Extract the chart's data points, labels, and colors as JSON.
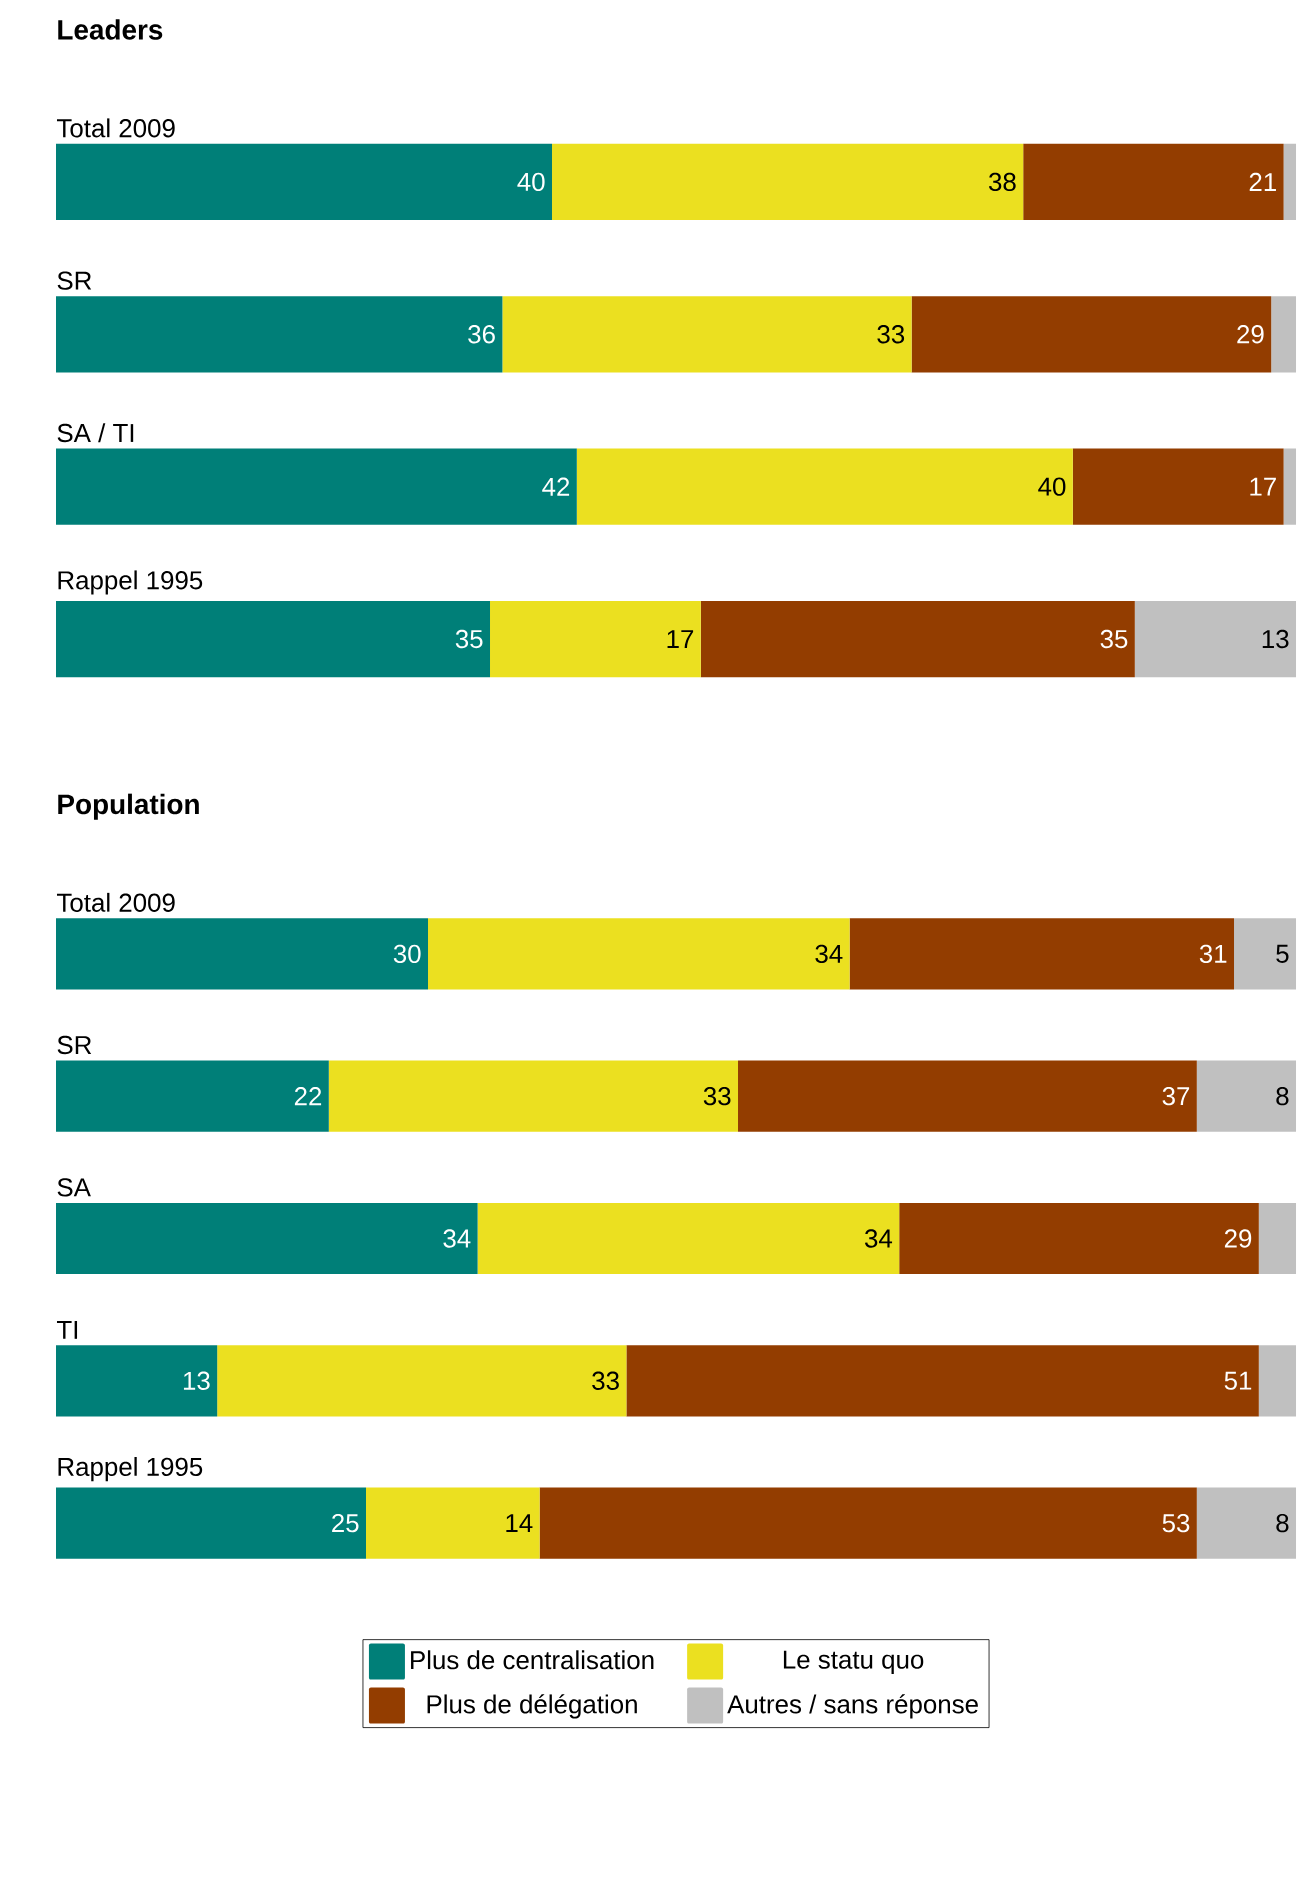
{
  "chart_data": [
    {
      "type": "bar",
      "orientation": "horizontal",
      "stacked": true,
      "title": "Leaders",
      "categories": [
        "Total 2009",
        "SR",
        "SA / TI",
        "Rappel 1995"
      ],
      "series": [
        {
          "color": "#007f78",
          "values": [
            40,
            36,
            42,
            35
          ],
          "value_labels": [
            "40",
            "36",
            "42",
            "35"
          ]
        },
        {
          "color": "#ebe020",
          "values": [
            38,
            33,
            40,
            17
          ],
          "value_labels": [
            "38",
            "33",
            "40",
            "17"
          ]
        },
        {
          "color": "#933d00",
          "values": [
            21,
            29,
            17,
            35
          ],
          "value_labels": [
            "21",
            "29",
            "17",
            "35"
          ]
        },
        {
          "color": "#c0c0c0",
          "values": [
            1,
            2,
            1,
            13
          ],
          "value_labels": [
            null,
            null,
            null,
            "13"
          ]
        }
      ]
    },
    {
      "type": "bar",
      "orientation": "horizontal",
      "stacked": true,
      "title": "Population",
      "legend": "bottom",
      "categories": [
        "Total 2009",
        "SR",
        "SA",
        "TI",
        "Rappel 1995"
      ],
      "series": [
        {
          "name": "Plus de centralisation",
          "color": "#007f78",
          "values": [
            30,
            22,
            34,
            13,
            25
          ],
          "value_labels": [
            "30",
            "22",
            "34",
            "13",
            "25"
          ]
        },
        {
          "name": "Le statu quo",
          "color": "#ebe020",
          "values": [
            34,
            33,
            34,
            33,
            14
          ],
          "value_labels": [
            "34",
            "33",
            "34",
            "33",
            "14"
          ]
        },
        {
          "name": "Plus de délégation",
          "color": "#933d00",
          "values": [
            31,
            37,
            29,
            51,
            53
          ],
          "value_labels": [
            "31",
            "37",
            "29",
            "51",
            "53"
          ]
        },
        {
          "name": "Autres / sans réponse",
          "color": "#c0c0c0",
          "values": [
            5,
            8,
            3,
            3,
            8
          ],
          "value_labels": [
            "5",
            "8",
            null,
            null,
            "8"
          ]
        }
      ]
    }
  ]
}
